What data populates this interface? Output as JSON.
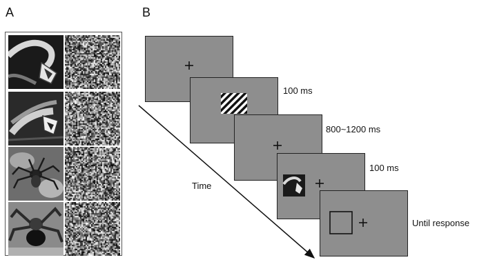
{
  "panels": {
    "a": {
      "label": "A"
    },
    "b": {
      "label": "B"
    }
  },
  "stimuli": {
    "rows": [
      {
        "image": "snake-open-mouth-photo",
        "control": "scrambled-noise-image"
      },
      {
        "image": "snake-coiled-photo",
        "control": "scrambled-noise-image"
      },
      {
        "image": "spider-photo",
        "control": "scrambled-noise-image"
      },
      {
        "image": "tarantula-photo",
        "control": "scrambled-noise-image"
      }
    ]
  },
  "trial": {
    "time_label": "Time",
    "screens": [
      {
        "content": "fixation-cross",
        "duration": ""
      },
      {
        "content": "striped-cue",
        "duration": "100 ms"
      },
      {
        "content": "fixation-cross",
        "duration": "800~1200 ms"
      },
      {
        "content": "snake-image-with-fixation",
        "duration": "100 ms"
      },
      {
        "content": "response-square-with-fixation",
        "duration": "Until response"
      }
    ]
  },
  "colors": {
    "screen_gray": "#8e8e8e",
    "border": "#222222"
  }
}
